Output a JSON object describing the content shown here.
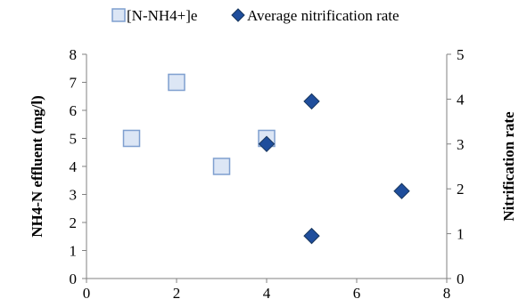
{
  "chart_data": {
    "type": "scatter",
    "title": "",
    "legend_position": "top",
    "grid": false,
    "x_axis": {
      "label": "",
      "range": [
        0,
        8
      ],
      "ticks": [
        0,
        2,
        4,
        6,
        8
      ]
    },
    "y_axis_left": {
      "label": "NH4-N effluent (mg/l)",
      "range": [
        0,
        8
      ],
      "ticks": [
        0,
        1,
        2,
        3,
        4,
        5,
        6,
        7,
        8
      ]
    },
    "y_axis_right": {
      "label": "Nitrification rate",
      "range": [
        0,
        5
      ],
      "ticks": [
        0,
        1,
        2,
        3,
        4,
        5
      ]
    },
    "series": [
      {
        "name": "[N-NH4+]e",
        "axis": "left",
        "marker": "square",
        "fill": "#dce6f5",
        "stroke": "#7f9fcf",
        "points": [
          {
            "x": 1,
            "y": 5
          },
          {
            "x": 2,
            "y": 7
          },
          {
            "x": 3,
            "y": 4
          },
          {
            "x": 4,
            "y": 5
          }
        ]
      },
      {
        "name": "Average nitrification rate",
        "axis": "right",
        "marker": "diamond",
        "fill": "#1f4e9c",
        "stroke": "#17365d",
        "points": [
          {
            "x": 4,
            "y": 3
          },
          {
            "x": 5,
            "y": 3.95
          },
          {
            "x": 5,
            "y": 0.95
          },
          {
            "x": 7,
            "y": 1.95
          }
        ]
      }
    ]
  }
}
